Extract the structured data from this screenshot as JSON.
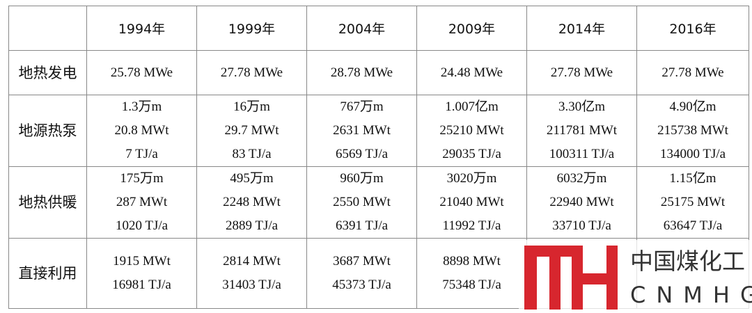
{
  "table": {
    "header": [
      "1994年",
      "1999年",
      "2004年",
      "2009年",
      "2014年",
      "2016年"
    ],
    "rows": [
      {
        "label": "地热发电",
        "cells": [
          [
            "25.78 MWe"
          ],
          [
            "27.78 MWe"
          ],
          [
            "28.78 MWe"
          ],
          [
            "24.48 MWe"
          ],
          [
            "27.78 MWe"
          ],
          [
            "27.78 MWe"
          ]
        ]
      },
      {
        "label": "地源热泵",
        "cells": [
          [
            "1.3万m",
            "20.8 MWt",
            "7 TJ/a"
          ],
          [
            "16万m",
            "29.7 MWt",
            "83 TJ/a"
          ],
          [
            "767万m",
            "2631 MWt",
            "6569 TJ/a"
          ],
          [
            "1.007亿m",
            "25210 MWt",
            "29035 TJ/a"
          ],
          [
            "3.30亿m",
            "211781 MWt",
            "100311 TJ/a"
          ],
          [
            "4.90亿m",
            "215738 MWt",
            "134000 TJ/a"
          ]
        ]
      },
      {
        "label": "地热供暖",
        "cells": [
          [
            "175万m",
            "287 MWt",
            "1020 TJ/a"
          ],
          [
            "495万m",
            "2248 MWt",
            "2889 TJ/a"
          ],
          [
            "960万m",
            "2550 MWt",
            "6391 TJ/a"
          ],
          [
            "3020万m",
            "21040 MWt",
            "11992 TJ/a"
          ],
          [
            "6032万m",
            "22940 MWt",
            "33710 TJ/a"
          ],
          [
            "1.15亿m",
            "25175 MWt",
            "63647 TJ/a"
          ]
        ]
      },
      {
        "label": "直接利用",
        "cells": [
          [
            "1915 MWt",
            "16981 TJ/a"
          ],
          [
            "2814 MWt",
            "31403 TJ/a"
          ],
          [
            "3687 MWt",
            "45373 TJ/a"
          ],
          [
            "8898 MWt",
            "75348 TJ/a"
          ]
        ]
      }
    ]
  },
  "watermark": {
    "name": "中国煤化工",
    "code": "CNMHG"
  }
}
